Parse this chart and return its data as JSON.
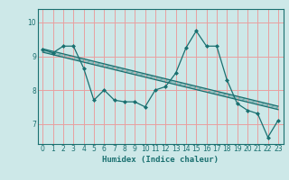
{
  "xlabel": "Humidex (Indice chaleur)",
  "bg_color": "#cde8e8",
  "line_color": "#1a7070",
  "grid_color": "#e8a0a0",
  "x_ticks": [
    0,
    1,
    2,
    3,
    4,
    5,
    6,
    7,
    8,
    9,
    10,
    11,
    12,
    13,
    14,
    15,
    16,
    17,
    18,
    19,
    20,
    21,
    22,
    23
  ],
  "y_ticks": [
    7,
    8,
    9,
    10
  ],
  "ylim": [
    6.4,
    10.4
  ],
  "xlim": [
    -0.5,
    23.5
  ],
  "series1": [
    9.2,
    9.1,
    9.3,
    9.3,
    8.65,
    7.7,
    8.0,
    7.7,
    7.65,
    7.65,
    7.5,
    8.0,
    8.1,
    8.5,
    9.25,
    9.75,
    9.3,
    9.3,
    8.3,
    7.6,
    7.4,
    7.3,
    6.6,
    7.1
  ],
  "trend1_y0": 9.22,
  "trend1_y1": 7.52,
  "trend2_y0": 9.12,
  "trend2_y1": 7.42
}
